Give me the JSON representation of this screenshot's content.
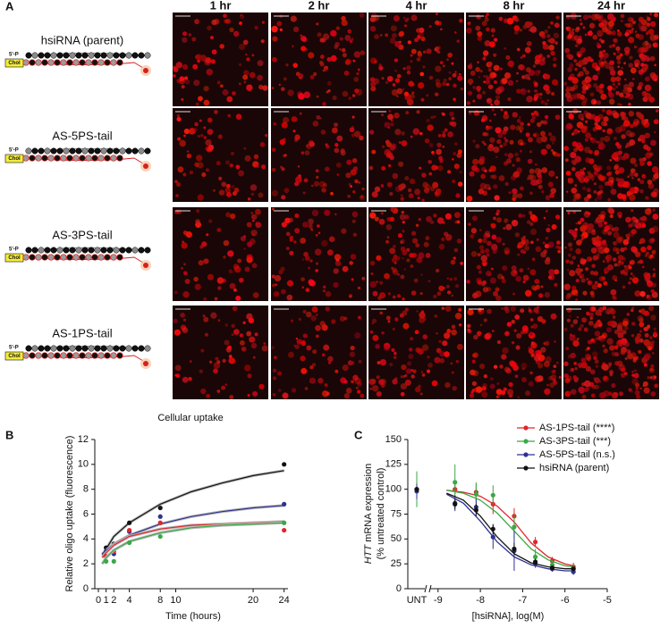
{
  "panel_a": {
    "label": "A",
    "timepoints": [
      "1 hr",
      "2 hr",
      "4 hr",
      "8 hr",
      "24 hr"
    ],
    "rows": [
      "hsiRNA (parent)",
      "AS-5PS-tail",
      "AS-3PS-tail",
      "AS-1PS-tail"
    ],
    "phosphate_label": "5'-P",
    "chol_label": "Chol"
  },
  "chart_data": [
    {
      "type": "scatter",
      "panel_label": "B",
      "title": "Cellular uptake",
      "x_label": "Time (hours)",
      "y_label": "Relative oligo uptake (fluorescence)",
      "xlim": [
        0,
        24.5
      ],
      "xticks": [
        0,
        1,
        2,
        4,
        8,
        10,
        20,
        24
      ],
      "ylim": [
        0,
        12
      ],
      "yticks": [
        0,
        2,
        4,
        6,
        8,
        10,
        12
      ],
      "x": [
        1,
        2,
        4,
        8,
        24
      ],
      "fit_x": [
        0.5,
        1,
        2,
        4,
        8,
        12,
        16,
        20,
        24
      ],
      "series": [
        {
          "color": "#111111",
          "values": [
            3.3,
            3.6,
            5.3,
            6.5,
            10.0
          ],
          "fit": [
            2.7,
            3.2,
            4.2,
            5.3,
            6.8,
            7.8,
            8.5,
            9.1,
            9.5
          ]
        },
        {
          "color": "#2e3192",
          "values": [
            3.0,
            2.8,
            4.6,
            5.8,
            6.8
          ],
          "fit": [
            2.8,
            3.1,
            3.6,
            4.3,
            5.2,
            5.8,
            6.2,
            6.5,
            6.7
          ]
        },
        {
          "color": "#e0262b",
          "values": [
            2.6,
            3.0,
            4.7,
            5.3,
            4.7
          ],
          "fit": [
            2.5,
            2.9,
            3.5,
            4.2,
            4.8,
            5.1,
            5.2,
            5.3,
            5.4
          ]
        },
        {
          "color": "#3aa845",
          "values": [
            2.2,
            2.2,
            3.7,
            4.2,
            5.3
          ],
          "fit": [
            2.0,
            2.5,
            3.1,
            3.8,
            4.5,
            4.9,
            5.1,
            5.2,
            5.3
          ]
        }
      ]
    },
    {
      "type": "dose-response",
      "panel_label": "C",
      "x_label": "[hsiRNA], log(M)",
      "y_label_gene": "HTT",
      "y_label": "mRNA expression",
      "y_label_2": "(% untreated control)",
      "unt_label": "UNT",
      "xlim": [
        -9.25,
        -5
      ],
      "xticks": [
        -9,
        -8,
        -7,
        -6,
        -5
      ],
      "ylim": [
        0,
        150
      ],
      "yticks": [
        0,
        25,
        50,
        75,
        100,
        125,
        150
      ],
      "x": [
        -8.6,
        -8.1,
        -7.7,
        -7.2,
        -6.7,
        -6.3,
        -5.8
      ],
      "fit_x": [
        -8.8,
        -8.4,
        -8,
        -7.6,
        -7.2,
        -6.8,
        -6.4,
        -6,
        -5.8
      ],
      "series": [
        {
          "name": "AS-1PS-tail (****)",
          "color": "#e0262b",
          "unt": 100,
          "unt_error": 5,
          "values": [
            100,
            97,
            85,
            73,
            47,
            28,
            22
          ],
          "errors": [
            5,
            8,
            10,
            8,
            5,
            4,
            4
          ],
          "fit": [
            99,
            97,
            93,
            83,
            67,
            46,
            32,
            25,
            23
          ]
        },
        {
          "name": "AS-3PS-tail (***)",
          "color": "#3aa845",
          "unt": 100,
          "unt_error": 18,
          "values": [
            107,
            95,
            94,
            62,
            32,
            24,
            20
          ],
          "errors": [
            18,
            12,
            10,
            12,
            8,
            5,
            6
          ],
          "fit": [
            99,
            96,
            89,
            76,
            58,
            40,
            29,
            23,
            22
          ]
        },
        {
          "name": "AS-5PS-tail (n.s.)",
          "color": "#2e3192",
          "unt": 98,
          "unt_error": 8,
          "values": [
            86,
            82,
            52,
            38,
            25,
            20,
            17
          ],
          "errors": [
            8,
            8,
            12,
            20,
            4,
            3,
            3
          ],
          "fit": [
            95,
            86,
            68,
            47,
            32,
            24,
            20,
            18,
            18
          ]
        },
        {
          "name": "hsiRNA (parent)",
          "color": "#111111",
          "unt": 100,
          "unt_error": 3,
          "values": [
            85,
            79,
            60,
            40,
            27,
            21,
            20
          ],
          "errors": [
            5,
            6,
            5,
            6,
            3,
            2,
            2
          ],
          "fit": [
            96,
            89,
            73,
            52,
            35,
            26,
            22,
            20,
            20
          ]
        }
      ]
    }
  ]
}
